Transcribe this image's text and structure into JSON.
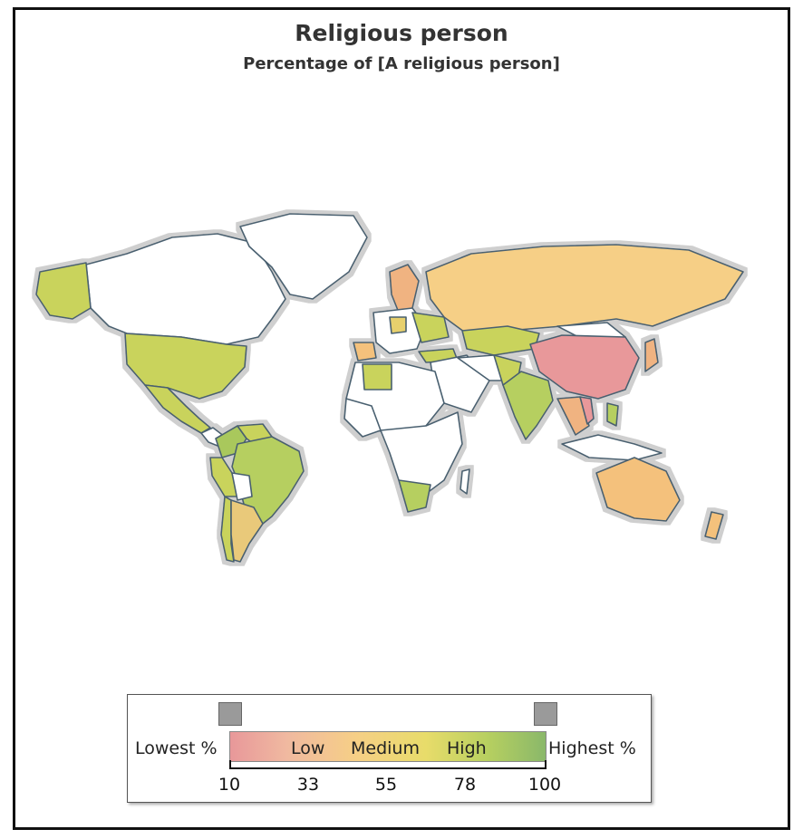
{
  "title": "Religious person",
  "subtitle": "Percentage of [A religious person]",
  "legend": {
    "lowest_label": "Lowest %",
    "highest_label": "Highest %",
    "band_labels": [
      "Low",
      "Medium",
      "High"
    ],
    "ticks": [
      "10",
      "33",
      "55",
      "78",
      "100"
    ]
  },
  "colors": {
    "low": "#e8989a",
    "medium": "#f6cf86",
    "high": "#b6cf60",
    "no_data": "#ffffff",
    "border": "#4a6070"
  },
  "chart_data": {
    "type": "choropleth",
    "title": "Religious person",
    "subtitle": "Percentage of [A religious person]",
    "scale_range": [
      10,
      100
    ],
    "categories": [
      {
        "region": "China",
        "class": "Low"
      },
      {
        "region": "Vietnam",
        "class": "Low"
      },
      {
        "region": "Russia",
        "class": "Medium"
      },
      {
        "region": "Australia",
        "class": "Medium"
      },
      {
        "region": "Japan",
        "class": "Medium"
      },
      {
        "region": "Sweden",
        "class": "Medium"
      },
      {
        "region": "Spain",
        "class": "Medium"
      },
      {
        "region": "Argentina",
        "class": "Medium"
      },
      {
        "region": "New Zealand",
        "class": "Medium"
      },
      {
        "region": "United States",
        "class": "High"
      },
      {
        "region": "Mexico",
        "class": "High"
      },
      {
        "region": "Brazil",
        "class": "High"
      },
      {
        "region": "Colombia",
        "class": "High"
      },
      {
        "region": "Peru",
        "class": "High"
      },
      {
        "region": "India",
        "class": "High"
      },
      {
        "region": "South Africa",
        "class": "High"
      },
      {
        "region": "Kazakhstan",
        "class": "High"
      },
      {
        "region": "Turkey",
        "class": "High"
      },
      {
        "region": "Algeria",
        "class": "High"
      },
      {
        "region": "Philippines",
        "class": "High"
      }
    ]
  }
}
